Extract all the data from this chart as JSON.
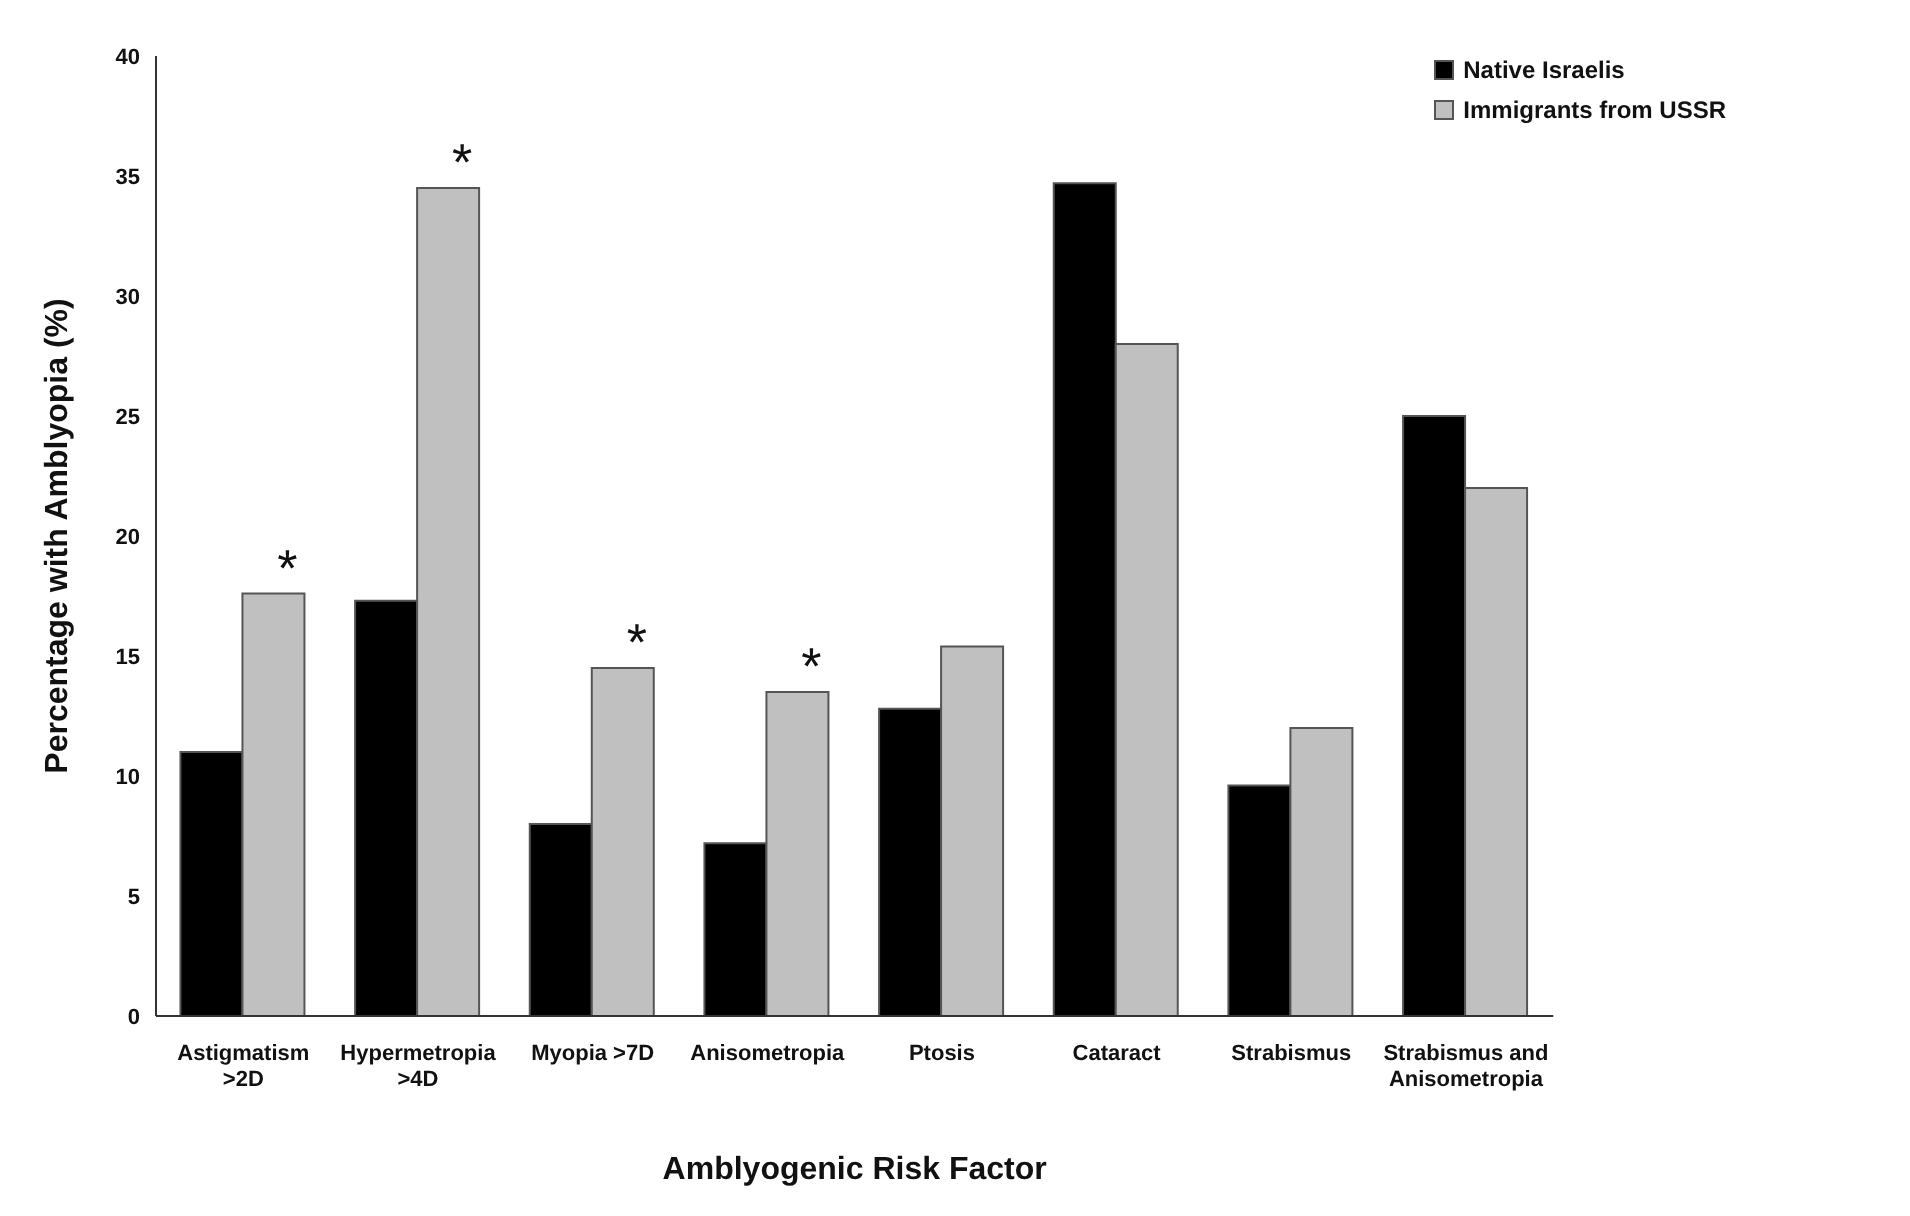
{
  "chart_data": {
    "type": "bar",
    "xlabel": "Amblyogenic Risk Factor",
    "ylabel": "Percentage with Amblyopia (%)",
    "categories": [
      "Astigmatism >2D",
      "Hypermetropia >4D",
      "Myopia >7D",
      "Anisometropia",
      "Ptosis",
      "Cataract",
      "Strabismus",
      "Strabismus and Anisometropia"
    ],
    "series": [
      {
        "name": "Native Israelis",
        "color": "#000000",
        "values": [
          11,
          17.3,
          8,
          7.2,
          12.8,
          34.7,
          9.6,
          25
        ]
      },
      {
        "name": "Immigrants from USSR",
        "color": "#c0c0c0",
        "values": [
          17.6,
          34.5,
          14.5,
          13.5,
          15.4,
          28,
          12,
          22
        ]
      }
    ],
    "ylim": [
      0,
      40
    ],
    "yticks": [
      0,
      5,
      10,
      15,
      20,
      25,
      30,
      35,
      40
    ],
    "grid": false,
    "legend": "top right",
    "annotations": [
      {
        "text": "*",
        "x": "Astigmatism >2D",
        "y": 17.6
      },
      {
        "text": "*",
        "x": "Hypermetropia >4D",
        "y": 34.5
      },
      {
        "text": "*",
        "x": "Myopia >7D",
        "y": 14.5
      },
      {
        "text": "*",
        "x": "Anisometropia",
        "y": 13.5
      }
    ]
  }
}
